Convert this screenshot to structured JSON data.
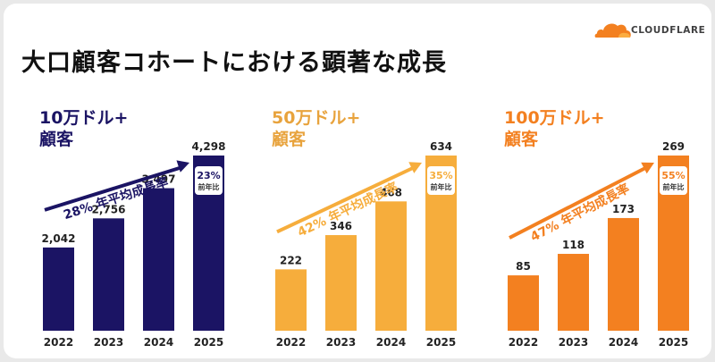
{
  "title": "大口顧客コホートにおける顕著な成長",
  "logo": {
    "text": "CLOUDFLARE",
    "icon": "cloud-icon",
    "color": "#f38020"
  },
  "chart_data": [
    {
      "type": "bar",
      "heading": [
        "10万ドル+",
        "顧客"
      ],
      "color": "#1b1464",
      "categories": [
        "2022",
        "2023",
        "2024",
        "2025"
      ],
      "values": [
        2042,
        2756,
        3497,
        4298
      ],
      "value_labels": [
        "2,042",
        "2,756",
        "3,497",
        "4,298"
      ],
      "growth_label": "28% 年平均成長率",
      "yoy": {
        "value": "23%",
        "label": "前年比"
      }
    },
    {
      "type": "bar",
      "heading": [
        "50万ドル+",
        "顧客"
      ],
      "color": "#f6ad3c",
      "categories": [
        "2022",
        "2023",
        "2024",
        "2025"
      ],
      "values": [
        222,
        346,
        468,
        634
      ],
      "value_labels": [
        "222",
        "346",
        "468",
        "634"
      ],
      "growth_label": "42% 年平均成長率",
      "yoy": {
        "value": "35%",
        "label": "前年比"
      }
    },
    {
      "type": "bar",
      "heading": [
        "100万ドル+",
        "顧客"
      ],
      "color": "#f38020",
      "categories": [
        "2022",
        "2023",
        "2024",
        "2025"
      ],
      "values": [
        85,
        118,
        173,
        269
      ],
      "value_labels": [
        "85",
        "118",
        "173",
        "269"
      ],
      "growth_label": "47% 年平均成長率",
      "yoy": {
        "value": "55%",
        "label": "前年比"
      }
    }
  ]
}
